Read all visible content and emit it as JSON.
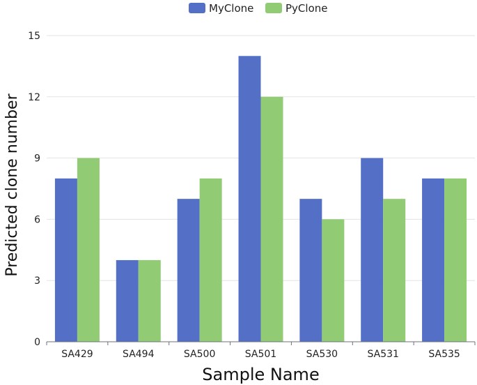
{
  "chart_data": {
    "type": "bar",
    "categories": [
      "SA429",
      "SA494",
      "SA500",
      "SA501",
      "SA530",
      "SA531",
      "SA535"
    ],
    "series": [
      {
        "name": "MyClone",
        "color": "#5470c6",
        "values": [
          8,
          4,
          7,
          14,
          7,
          9,
          8
        ]
      },
      {
        "name": "PyClone",
        "color": "#91cc75",
        "values": [
          9,
          4,
          8,
          12,
          6,
          7,
          8
        ]
      }
    ],
    "title": "",
    "xlabel": "Sample Name",
    "ylabel": "Predicted clone number",
    "ylim": [
      0,
      15
    ],
    "yticks": [
      0,
      3,
      6,
      9,
      12,
      15
    ],
    "grid": true,
    "legend_position": "top-center"
  }
}
